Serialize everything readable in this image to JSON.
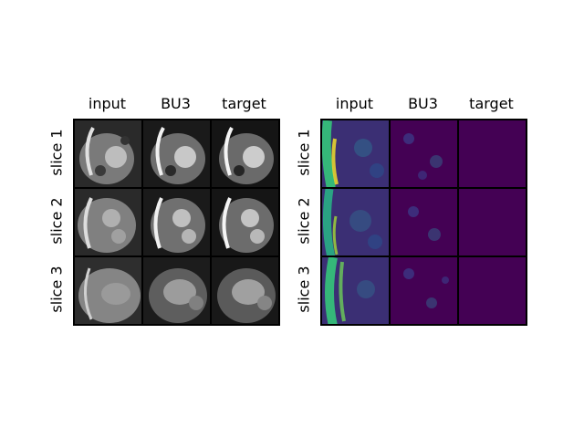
{
  "panels": [
    {
      "id": "grayscale",
      "columns": [
        "input",
        "BU3",
        "target"
      ],
      "rows": [
        "slice 1",
        "slice 2",
        "slice 3"
      ],
      "colormap": "gray"
    },
    {
      "id": "error",
      "columns": [
        "input",
        "BU3",
        "target"
      ],
      "rows": [
        "slice 1",
        "slice 2",
        "slice 3"
      ],
      "colormap": "viridis"
    }
  ],
  "colors": {
    "viridis_dark": "#440154",
    "viridis_mid": "#31688e",
    "viridis_green": "#35b779",
    "viridis_yellow": "#fde725",
    "gray_dark": "#101010",
    "gray_light": "#c8c8c8"
  }
}
